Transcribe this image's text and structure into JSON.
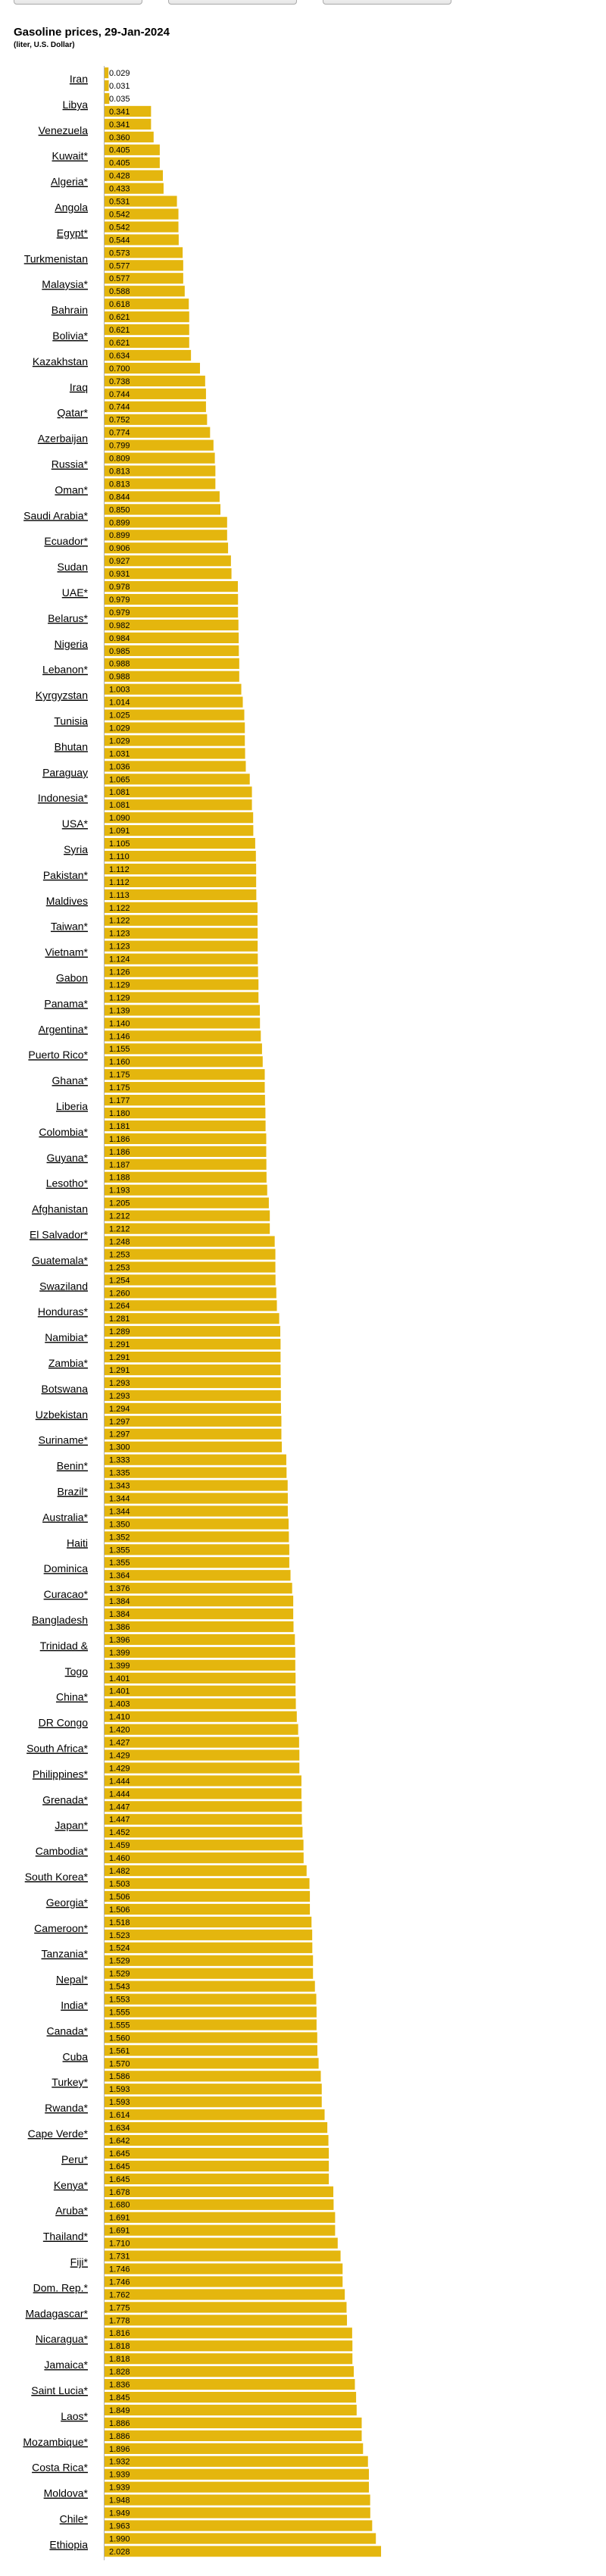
{
  "title": "Gasoline prices, 29-Jan-2024",
  "subtitle": "(liter, U.S. Dollar)",
  "colors": {
    "bar": "#E4B60E",
    "axis": "#b0b0b0"
  },
  "chart_data": {
    "type": "bar",
    "orientation": "horizontal",
    "title": "Gasoline prices, 29-Jan-2024",
    "subtitle": "(liter, U.S. Dollar)",
    "xlim": [
      0,
      2.6
    ],
    "grid": false,
    "rows": [
      [
        "Iran",
        0.029
      ],
      [
        "",
        0.031
      ],
      [
        "Libya",
        0.035
      ],
      [
        "",
        0.341
      ],
      [
        "Venezuela",
        0.341
      ],
      [
        "",
        0.36
      ],
      [
        "Kuwait*",
        0.405
      ],
      [
        "",
        0.405
      ],
      [
        "Algeria*",
        0.428
      ],
      [
        "",
        0.433
      ],
      [
        "Angola",
        0.531
      ],
      [
        "",
        0.542
      ],
      [
        "Egypt*",
        0.542
      ],
      [
        "",
        0.544
      ],
      [
        "Turkmenistan",
        0.573
      ],
      [
        "",
        0.577
      ],
      [
        "Malaysia*",
        0.577
      ],
      [
        "",
        0.588
      ],
      [
        "Bahrain",
        0.618
      ],
      [
        "",
        0.621
      ],
      [
        "Bolivia*",
        0.621
      ],
      [
        "",
        0.621
      ],
      [
        "Kazakhstan",
        0.634
      ],
      [
        "",
        0.7
      ],
      [
        "Iraq",
        0.738
      ],
      [
        "",
        0.744
      ],
      [
        "Qatar*",
        0.744
      ],
      [
        "",
        0.752
      ],
      [
        "Azerbaijan",
        0.774
      ],
      [
        "",
        0.799
      ],
      [
        "Russia*",
        0.809
      ],
      [
        "",
        0.813
      ],
      [
        "Oman*",
        0.813
      ],
      [
        "",
        0.844
      ],
      [
        "Saudi Arabia*",
        0.85
      ],
      [
        "",
        0.899
      ],
      [
        "Ecuador*",
        0.899
      ],
      [
        "",
        0.906
      ],
      [
        "Sudan",
        0.927
      ],
      [
        "",
        0.931
      ],
      [
        "UAE*",
        0.978
      ],
      [
        "",
        0.979
      ],
      [
        "Belarus*",
        0.979
      ],
      [
        "",
        0.982
      ],
      [
        "Nigeria",
        0.984
      ],
      [
        "",
        0.985
      ],
      [
        "Lebanon*",
        0.988
      ],
      [
        "",
        0.988
      ],
      [
        "Kyrgyzstan",
        1.003
      ],
      [
        "",
        1.014
      ],
      [
        "Tunisia",
        1.025
      ],
      [
        "",
        1.029
      ],
      [
        "Bhutan",
        1.029
      ],
      [
        "",
        1.031
      ],
      [
        "Paraguay",
        1.036
      ],
      [
        "",
        1.065
      ],
      [
        "Indonesia*",
        1.081
      ],
      [
        "",
        1.081
      ],
      [
        "USA*",
        1.09
      ],
      [
        "",
        1.091
      ],
      [
        "Syria",
        1.105
      ],
      [
        "",
        1.11
      ],
      [
        "Pakistan*",
        1.112
      ],
      [
        "",
        1.112
      ],
      [
        "Maldives",
        1.113
      ],
      [
        "",
        1.122
      ],
      [
        "Taiwan*",
        1.122
      ],
      [
        "",
        1.123
      ],
      [
        "Vietnam*",
        1.123
      ],
      [
        "",
        1.124
      ],
      [
        "Gabon",
        1.126
      ],
      [
        "",
        1.129
      ],
      [
        "Panama*",
        1.129
      ],
      [
        "",
        1.139
      ],
      [
        "Argentina*",
        1.14
      ],
      [
        "",
        1.146
      ],
      [
        "Puerto Rico*",
        1.155
      ],
      [
        "",
        1.16
      ],
      [
        "Ghana*",
        1.175
      ],
      [
        "",
        1.175
      ],
      [
        "Liberia",
        1.177
      ],
      [
        "",
        1.18
      ],
      [
        "Colombia*",
        1.181
      ],
      [
        "",
        1.186
      ],
      [
        "Guyana*",
        1.186
      ],
      [
        "",
        1.187
      ],
      [
        "Lesotho*",
        1.188
      ],
      [
        "",
        1.193
      ],
      [
        "Afghanistan",
        1.205
      ],
      [
        "",
        1.212
      ],
      [
        "El Salvador*",
        1.212
      ],
      [
        "",
        1.248
      ],
      [
        "Guatemala*",
        1.253
      ],
      [
        "",
        1.253
      ],
      [
        "Swaziland",
        1.254
      ],
      [
        "",
        1.26
      ],
      [
        "Honduras*",
        1.264
      ],
      [
        "",
        1.281
      ],
      [
        "Namibia*",
        1.289
      ],
      [
        "",
        1.291
      ],
      [
        "Zambia*",
        1.291
      ],
      [
        "",
        1.291
      ],
      [
        "Botswana",
        1.293
      ],
      [
        "",
        1.293
      ],
      [
        "Uzbekistan",
        1.294
      ],
      [
        "",
        1.297
      ],
      [
        "Suriname*",
        1.297
      ],
      [
        "",
        1.3
      ],
      [
        "Benin*",
        1.333
      ],
      [
        "",
        1.335
      ],
      [
        "Brazil*",
        1.343
      ],
      [
        "",
        1.344
      ],
      [
        "Australia*",
        1.344
      ],
      [
        "",
        1.35
      ],
      [
        "Haiti",
        1.352
      ],
      [
        "",
        1.355
      ],
      [
        "Dominica",
        1.355
      ],
      [
        "",
        1.364
      ],
      [
        "Curacao*",
        1.376
      ],
      [
        "",
        1.384
      ],
      [
        "Bangladesh",
        1.384
      ],
      [
        "",
        1.386
      ],
      [
        "Trinidad &",
        1.396
      ],
      [
        "",
        1.399
      ],
      [
        "Togo",
        1.399
      ],
      [
        "",
        1.401
      ],
      [
        "China*",
        1.401
      ],
      [
        "",
        1.403
      ],
      [
        "DR Congo",
        1.41
      ],
      [
        "",
        1.42
      ],
      [
        "South Africa*",
        1.427
      ],
      [
        "",
        1.429
      ],
      [
        "Philippines*",
        1.429
      ],
      [
        "",
        1.444
      ],
      [
        "Grenada*",
        1.444
      ],
      [
        "",
        1.447
      ],
      [
        "Japan*",
        1.447
      ],
      [
        "",
        1.452
      ],
      [
        "Cambodia*",
        1.459
      ],
      [
        "",
        1.46
      ],
      [
        "South Korea*",
        1.482
      ],
      [
        "",
        1.503
      ],
      [
        "Georgia*",
        1.506
      ],
      [
        "",
        1.506
      ],
      [
        "Cameroon*",
        1.518
      ],
      [
        "",
        1.523
      ],
      [
        "Tanzania*",
        1.524
      ],
      [
        "",
        1.529
      ],
      [
        "Nepal*",
        1.529
      ],
      [
        "",
        1.543
      ],
      [
        "India*",
        1.553
      ],
      [
        "",
        1.555
      ],
      [
        "Canada*",
        1.555
      ],
      [
        "",
        1.56
      ],
      [
        "Cuba",
        1.561
      ],
      [
        "",
        1.57
      ],
      [
        "Turkey*",
        1.586
      ],
      [
        "",
        1.593
      ],
      [
        "Rwanda*",
        1.593
      ],
      [
        "",
        1.614
      ],
      [
        "Cape Verde*",
        1.634
      ],
      [
        "",
        1.642
      ],
      [
        "Peru*",
        1.645
      ],
      [
        "",
        1.645
      ],
      [
        "Kenya*",
        1.645
      ],
      [
        "",
        1.678
      ],
      [
        "Aruba*",
        1.68
      ],
      [
        "",
        1.691
      ],
      [
        "Thailand*",
        1.691
      ],
      [
        "",
        1.71
      ],
      [
        "Fiji*",
        1.731
      ],
      [
        "",
        1.746
      ],
      [
        "Dom. Rep.*",
        1.746
      ],
      [
        "",
        1.762
      ],
      [
        "Madagascar*",
        1.775
      ],
      [
        "",
        1.778
      ],
      [
        "Nicaragua*",
        1.816
      ],
      [
        "",
        1.818
      ],
      [
        "Jamaica*",
        1.818
      ],
      [
        "",
        1.828
      ],
      [
        "Saint Lucia*",
        1.836
      ],
      [
        "",
        1.845
      ],
      [
        "Laos*",
        1.849
      ],
      [
        "",
        1.886
      ],
      [
        "Mozambique*",
        1.886
      ],
      [
        "",
        1.896
      ],
      [
        "Costa Rica*",
        1.932
      ],
      [
        "",
        1.939
      ],
      [
        "Moldova*",
        1.939
      ],
      [
        "",
        1.948
      ],
      [
        "Chile*",
        1.949
      ],
      [
        "",
        1.963
      ],
      [
        "Ethiopia",
        1.99
      ],
      [
        "",
        2.028
      ]
    ]
  }
}
